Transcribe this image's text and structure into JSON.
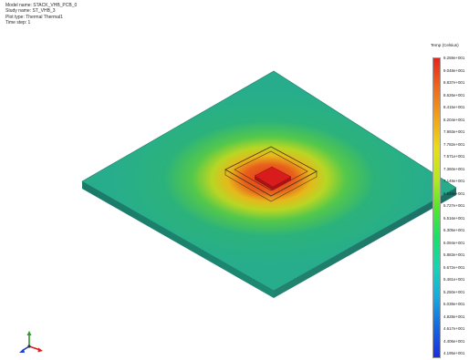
{
  "header": {
    "model_name": "Model name: STACK_VHB_PCB_0",
    "study_name": "Study name: ST_VHB_3",
    "plot_type": "Plot type: Thermal Thermal1",
    "time_step": "Time step: 1"
  },
  "legend": {
    "title": "Temp (Celsius)",
    "ticks": [
      "9.259e+001",
      "9.048e+001",
      "8.837e+001",
      "8.626e+001",
      "8.415e+001",
      "8.204e+001",
      "7.993e+001",
      "7.782e+001",
      "7.571e+001",
      "7.360e+001",
      "7.149e+001",
      "6.938e+001",
      "6.727e+001",
      "6.516e+001",
      "6.305e+001",
      "6.094e+001",
      "5.883e+001",
      "5.672e+001",
      "5.461e+001",
      "5.250e+001",
      "5.039e+001",
      "4.828e+001",
      "4.617e+001",
      "4.406e+001",
      "4.195e+001"
    ],
    "colors": [
      "#e8231e",
      "#ef6a1b",
      "#f2a318",
      "#eadc1a",
      "#b9e81e",
      "#54e62e",
      "#18e06a",
      "#14d5b6",
      "#17a9e0",
      "#1667e2",
      "#1b2ee0"
    ]
  },
  "plate_color": "#27b28e",
  "icons": {
    "triad": "xyz-triad-icon"
  }
}
